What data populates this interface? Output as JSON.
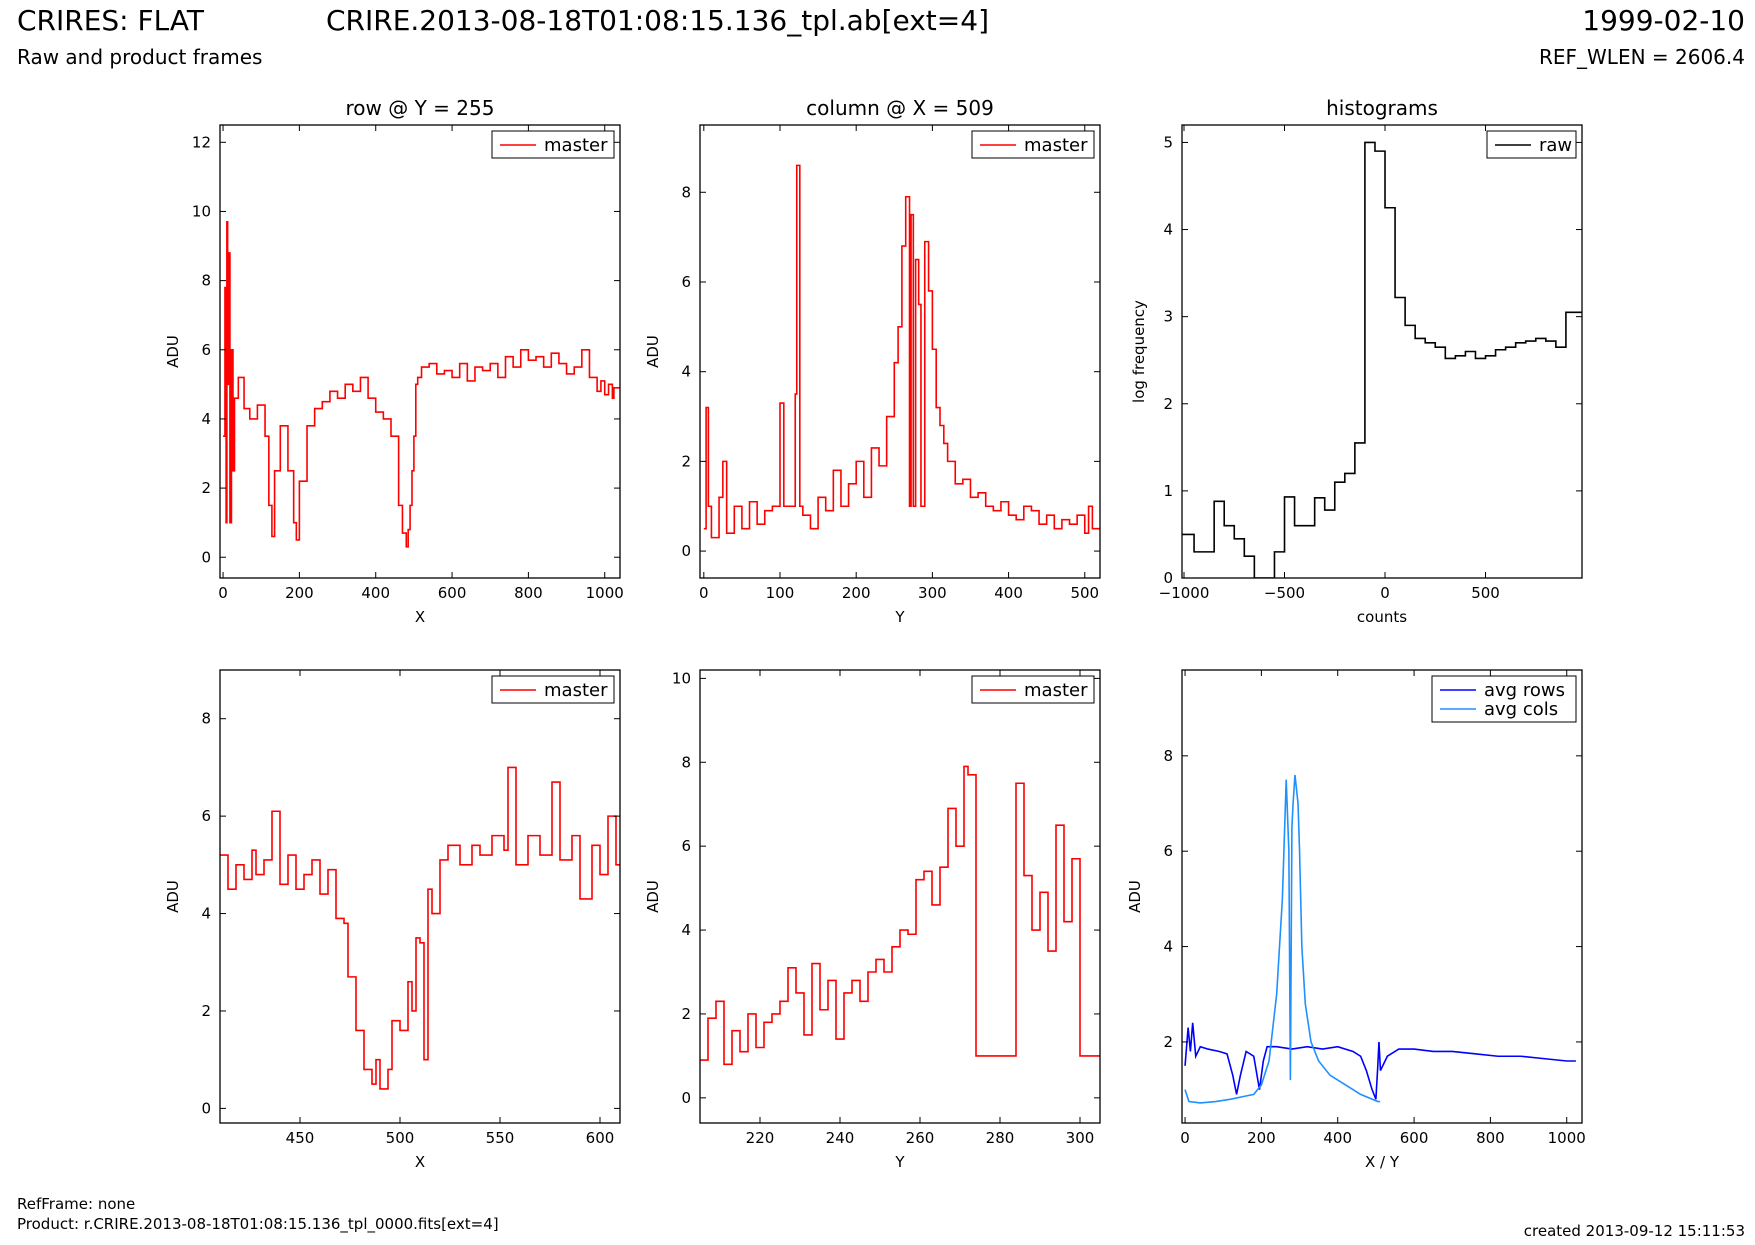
{
  "header": {
    "left_title": "CRIRES: FLAT",
    "left_subtitle": "Raw and product frames",
    "center_title": "CRIRE.2013-08-18T01:08:15.136_tpl.ab[ext=4]",
    "right_title": "1999-02-10",
    "right_subtitle": "REF_WLEN = 2606.4"
  },
  "footer": {
    "ref_frame": "RefFrame: none",
    "product": "Product: r.CRIRE.2013-08-18T01:08:15.136_tpl_0000.fits[ext=4]",
    "created": "created 2013-09-12 15:11:53"
  },
  "colors": {
    "master": "#ff0000",
    "raw": "#000000",
    "avg_rows": "#0000ff",
    "avg_cols": "#1e90ff"
  },
  "chart_data": [
    {
      "id": "row-plot",
      "type": "line",
      "title": "row @ Y = 255",
      "xlabel": "X",
      "ylabel": "ADU",
      "xlim": [
        -8,
        1040
      ],
      "ylim": [
        -0.6,
        12.5
      ],
      "xticks": [
        0,
        200,
        400,
        600,
        800,
        1000
      ],
      "yticks": [
        0,
        2,
        4,
        6,
        8,
        10,
        12
      ],
      "legend": "top-right",
      "series": [
        {
          "name": "master",
          "color": "#ff0000",
          "step": true,
          "x": [
            0,
            5,
            8,
            10,
            12,
            15,
            18,
            22,
            26,
            30,
            40,
            55,
            70,
            90,
            110,
            120,
            128,
            135,
            150,
            170,
            185,
            192,
            200,
            220,
            240,
            260,
            280,
            300,
            320,
            340,
            360,
            380,
            400,
            420,
            440,
            460,
            470,
            480,
            485,
            490,
            495,
            500,
            505,
            510,
            520,
            540,
            560,
            580,
            600,
            620,
            640,
            660,
            680,
            700,
            720,
            740,
            760,
            780,
            800,
            820,
            840,
            860,
            880,
            900,
            920,
            940,
            960,
            980,
            990,
            1000,
            1010,
            1020,
            1024
          ],
          "y": [
            3.5,
            7.8,
            1.0,
            9.7,
            5.0,
            8.8,
            1.0,
            6.0,
            2.5,
            4.6,
            5.2,
            4.3,
            4.0,
            4.4,
            3.5,
            1.5,
            0.6,
            2.5,
            3.8,
            2.5,
            1.0,
            0.5,
            2.2,
            3.8,
            4.3,
            4.5,
            4.8,
            4.6,
            5.0,
            4.8,
            5.2,
            4.6,
            4.2,
            4.0,
            3.5,
            1.5,
            0.7,
            0.3,
            0.8,
            1.5,
            2.5,
            3.5,
            5.0,
            5.2,
            5.5,
            5.6,
            5.3,
            5.4,
            5.2,
            5.6,
            5.1,
            5.5,
            5.4,
            5.6,
            5.2,
            5.8,
            5.5,
            6.0,
            5.7,
            5.8,
            5.5,
            5.9,
            5.6,
            5.3,
            5.5,
            6.0,
            5.2,
            4.8,
            5.1,
            4.7,
            5.0,
            4.6,
            4.9
          ]
        }
      ]
    },
    {
      "id": "col-plot",
      "type": "line",
      "title": "column @ X = 509",
      "xlabel": "Y",
      "ylabel": "ADU",
      "xlim": [
        -5,
        520
      ],
      "ylim": [
        -0.6,
        9.5
      ],
      "xticks": [
        0,
        100,
        200,
        300,
        400,
        500
      ],
      "yticks": [
        0,
        2,
        4,
        6,
        8
      ],
      "legend": "top-right",
      "series": [
        {
          "name": "master",
          "color": "#ff0000",
          "step": true,
          "x": [
            0,
            3,
            6,
            10,
            20,
            25,
            30,
            40,
            50,
            60,
            70,
            80,
            90,
            100,
            105,
            115,
            120,
            122,
            126,
            130,
            140,
            150,
            160,
            170,
            180,
            190,
            200,
            210,
            220,
            230,
            240,
            250,
            255,
            260,
            265,
            270,
            272,
            275,
            278,
            282,
            285,
            290,
            295,
            300,
            305,
            310,
            315,
            320,
            330,
            340,
            350,
            360,
            370,
            380,
            390,
            400,
            410,
            420,
            430,
            440,
            450,
            460,
            470,
            480,
            490,
            500,
            505,
            510
          ],
          "y": [
            0.5,
            3.2,
            1.0,
            0.3,
            1.2,
            2.0,
            0.4,
            1.0,
            0.5,
            1.1,
            0.6,
            0.9,
            1.0,
            3.3,
            1.0,
            1.0,
            3.5,
            8.6,
            1.0,
            0.8,
            0.5,
            1.2,
            0.9,
            1.8,
            1.0,
            1.5,
            2.0,
            1.2,
            2.3,
            1.9,
            3.0,
            4.2,
            5.0,
            6.8,
            7.9,
            1.0,
            7.5,
            1.0,
            6.5,
            5.5,
            1.0,
            6.9,
            5.8,
            4.5,
            3.2,
            2.8,
            2.4,
            2.0,
            1.5,
            1.6,
            1.2,
            1.3,
            1.0,
            0.9,
            1.1,
            0.8,
            0.7,
            1.0,
            0.9,
            0.6,
            0.8,
            0.5,
            0.7,
            0.6,
            0.8,
            0.4,
            1.0,
            0.5
          ]
        }
      ]
    },
    {
      "id": "hist-plot",
      "type": "line",
      "title": "histograms",
      "xlabel": "counts",
      "ylabel": "log frequency",
      "xlim": [
        -1010,
        980
      ],
      "ylim": [
        0,
        5.2
      ],
      "xticks": [
        -1000,
        -500,
        0,
        500
      ],
      "yticks": [
        0,
        1,
        2,
        3,
        4,
        5
      ],
      "legend": "top-right",
      "series": [
        {
          "name": "raw",
          "color": "#000000",
          "step": true,
          "x": [
            -1010,
            -950,
            -850,
            -800,
            -750,
            -700,
            -650,
            -600,
            -550,
            -500,
            -450,
            -400,
            -350,
            -300,
            -250,
            -200,
            -150,
            -100,
            -50,
            0,
            50,
            100,
            150,
            200,
            250,
            300,
            350,
            400,
            450,
            500,
            550,
            600,
            650,
            700,
            750,
            800,
            850,
            900,
            950
          ],
          "y": [
            0.5,
            0.3,
            0.88,
            0.6,
            0.45,
            0.25,
            0.0,
            0.0,
            0.3,
            0.93,
            0.6,
            0.6,
            0.92,
            0.78,
            1.1,
            1.2,
            1.55,
            5.0,
            4.9,
            4.25,
            3.22,
            2.9,
            2.75,
            2.7,
            2.65,
            2.52,
            2.55,
            2.6,
            2.52,
            2.55,
            2.62,
            2.65,
            2.7,
            2.72,
            2.75,
            2.72,
            2.65,
            3.05,
            3.05
          ]
        }
      ]
    },
    {
      "id": "row-zoom-plot",
      "type": "line",
      "title": "",
      "xlabel": "X",
      "ylabel": "ADU",
      "xlim": [
        410,
        610
      ],
      "ylim": [
        -0.3,
        9.0
      ],
      "xticks": [
        450,
        500,
        550,
        600
      ],
      "yticks": [
        0,
        2,
        4,
        6,
        8
      ],
      "legend": "top-right",
      "series": [
        {
          "name": "master",
          "color": "#ff0000",
          "step": true,
          "x": [
            410,
            414,
            418,
            422,
            426,
            428,
            432,
            436,
            440,
            444,
            448,
            452,
            456,
            460,
            464,
            468,
            472,
            474,
            478,
            482,
            486,
            488,
            490,
            494,
            496,
            500,
            504,
            506,
            508,
            510,
            512,
            514,
            516,
            520,
            524,
            530,
            536,
            540,
            546,
            552,
            554,
            558,
            564,
            570,
            576,
            580,
            586,
            590,
            596,
            600,
            604,
            608
          ],
          "y": [
            5.2,
            4.5,
            5.0,
            4.7,
            5.3,
            4.8,
            5.1,
            6.1,
            4.6,
            5.2,
            4.5,
            4.8,
            5.1,
            4.4,
            4.9,
            3.9,
            3.8,
            2.7,
            1.6,
            0.8,
            0.5,
            1.0,
            0.4,
            0.8,
            1.8,
            1.6,
            2.6,
            2.0,
            3.5,
            3.4,
            1.0,
            4.5,
            4.0,
            5.1,
            5.4,
            5.0,
            5.4,
            5.2,
            5.6,
            5.3,
            7.0,
            5.0,
            5.6,
            5.2,
            6.7,
            5.1,
            5.6,
            4.3,
            5.4,
            4.8,
            6.0,
            5.0
          ]
        }
      ]
    },
    {
      "id": "col-zoom-plot",
      "type": "line",
      "title": "",
      "xlabel": "Y",
      "ylabel": "ADU",
      "xlim": [
        205,
        305
      ],
      "ylim": [
        -0.6,
        10.2
      ],
      "xticks": [
        220,
        240,
        260,
        280,
        300
      ],
      "yticks": [
        0,
        2,
        4,
        6,
        8,
        10
      ],
      "legend": "top-right",
      "series": [
        {
          "name": "master",
          "color": "#ff0000",
          "step": true,
          "x": [
            205,
            207,
            209,
            211,
            213,
            215,
            217,
            219,
            221,
            223,
            225,
            227,
            229,
            231,
            233,
            235,
            237,
            239,
            241,
            243,
            245,
            247,
            249,
            251,
            253,
            255,
            257,
            259,
            261,
            263,
            265,
            267,
            269,
            271,
            272,
            274,
            276,
            278,
            280,
            282,
            284,
            286,
            288,
            290,
            292,
            294,
            296,
            298,
            300,
            302,
            304
          ],
          "y": [
            0.9,
            1.9,
            2.3,
            0.8,
            1.6,
            1.1,
            2.0,
            1.2,
            1.8,
            2.0,
            2.3,
            3.1,
            2.5,
            1.5,
            3.2,
            2.1,
            2.8,
            1.4,
            2.5,
            2.8,
            2.3,
            3.0,
            3.3,
            3.0,
            3.6,
            4.0,
            3.9,
            5.2,
            5.4,
            4.6,
            5.5,
            6.9,
            6.0,
            7.9,
            7.7,
            1.0,
            1.0,
            1.0,
            1.0,
            1.0,
            7.5,
            5.3,
            4.0,
            4.9,
            3.5,
            6.5,
            4.2,
            5.7,
            1.0,
            1.0,
            1.0
          ]
        }
      ]
    },
    {
      "id": "avg-plot",
      "type": "line",
      "title": "",
      "xlabel": "X / Y",
      "ylabel": "ADU",
      "xlim": [
        -8,
        1040
      ],
      "ylim": [
        0.3,
        9.8
      ],
      "xticks": [
        0,
        200,
        400,
        600,
        800,
        1000
      ],
      "yticks": [
        2,
        4,
        6,
        8
      ],
      "legend": "top-right",
      "series": [
        {
          "name": "avg rows",
          "color": "#0000ff",
          "step": false,
          "x": [
            0,
            8,
            14,
            20,
            28,
            40,
            60,
            90,
            110,
            125,
            135,
            145,
            160,
            180,
            195,
            205,
            215,
            240,
            280,
            320,
            360,
            400,
            440,
            460,
            475,
            490,
            500,
            505,
            508,
            512,
            530,
            560,
            600,
            650,
            700,
            760,
            820,
            880,
            940,
            1000,
            1024
          ],
          "y": [
            1.5,
            2.3,
            1.8,
            2.4,
            1.7,
            1.9,
            1.85,
            1.8,
            1.75,
            1.3,
            0.9,
            1.3,
            1.8,
            1.7,
            1.0,
            1.6,
            1.9,
            1.9,
            1.85,
            1.9,
            1.85,
            1.9,
            1.8,
            1.7,
            1.4,
            1.0,
            0.8,
            1.5,
            2.0,
            1.4,
            1.7,
            1.85,
            1.85,
            1.8,
            1.8,
            1.75,
            1.7,
            1.7,
            1.65,
            1.6,
            1.6
          ]
        },
        {
          "name": "avg cols",
          "color": "#1e90ff",
          "step": false,
          "x": [
            0,
            10,
            40,
            80,
            120,
            150,
            180,
            200,
            220,
            240,
            255,
            265,
            272,
            276,
            280,
            283,
            288,
            296,
            300,
            306,
            315,
            330,
            350,
            380,
            420,
            460,
            490,
            505,
            511
          ],
          "y": [
            1.0,
            0.75,
            0.72,
            0.75,
            0.8,
            0.85,
            0.9,
            1.1,
            1.6,
            3.0,
            5.0,
            7.5,
            6.0,
            1.2,
            6.5,
            7.0,
            7.6,
            7.0,
            6.0,
            4.0,
            2.8,
            2.0,
            1.6,
            1.3,
            1.1,
            0.9,
            0.8,
            0.75,
            0.75
          ]
        }
      ]
    }
  ]
}
